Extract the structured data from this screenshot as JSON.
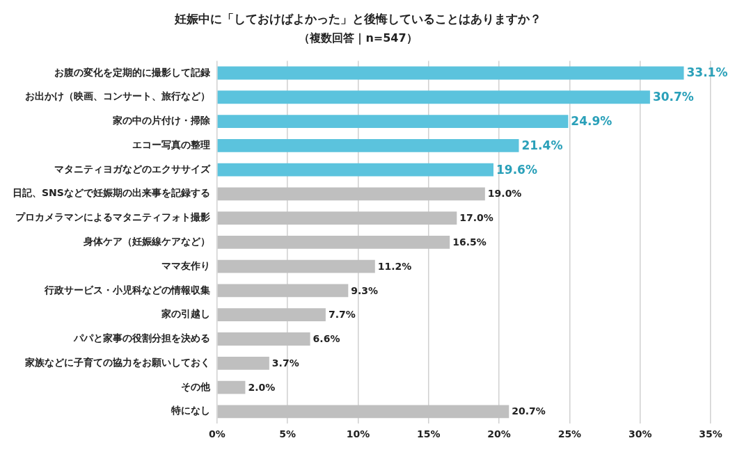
{
  "chart_data": {
    "type": "bar",
    "orientation": "horizontal",
    "title": "妊娠中に「しておけばよかった」と後悔していることはありますか？",
    "subtitle": "（複数回答｜n=547）",
    "categories": [
      "お腹の変化を定期的に撮影して記録",
      "お出かけ（映画、コンサート、旅行など）",
      "家の中の片付け・掃除",
      "エコー写真の整理",
      "マタニティヨガなどのエクササイズ",
      "日記、SNSなどで妊娠期の出来事を記録する",
      "プロカメラマンによるマタニティフォト撮影",
      "身体ケア（妊娠線ケアなど）",
      "ママ友作り",
      "行政サービス・小児科などの情報収集",
      "家の引越し",
      "パパと家事の役割分担を決める",
      "家族などに子育ての協力をお願いしておく",
      "その他",
      "特になし"
    ],
    "values": [
      33.1,
      30.7,
      24.9,
      21.4,
      19.6,
      19.0,
      17.0,
      16.5,
      11.2,
      9.3,
      7.7,
      6.6,
      3.7,
      2.0,
      20.7
    ],
    "value_labels": [
      "33.1%",
      "30.7%",
      "24.9%",
      "21.4%",
      "19.6%",
      "19.0%",
      "17.0%",
      "16.5%",
      "11.2%",
      "9.3%",
      "7.7%",
      "6.6%",
      "3.7%",
      "2.0%",
      "20.7%"
    ],
    "colors": [
      "#5bc3dd",
      "#5bc3dd",
      "#5bc3dd",
      "#5bc3dd",
      "#5bc3dd",
      "#bfbfbf",
      "#bfbfbf",
      "#bfbfbf",
      "#bfbfbf",
      "#bfbfbf",
      "#bfbfbf",
      "#bfbfbf",
      "#bfbfbf",
      "#bfbfbf",
      "#bfbfbf"
    ],
    "xlim": [
      0,
      35
    ],
    "xticks": [
      {
        "value": 0,
        "label": "0%"
      },
      {
        "value": 5,
        "label": "5%"
      },
      {
        "value": 10,
        "label": "10%"
      },
      {
        "value": 15,
        "label": "15%"
      },
      {
        "value": 20,
        "label": "20%"
      },
      {
        "value": 25,
        "label": "25%"
      },
      {
        "value": 30,
        "label": "30%"
      },
      {
        "value": 35,
        "label": "35%"
      }
    ],
    "grid": true,
    "data_labels": true
  }
}
